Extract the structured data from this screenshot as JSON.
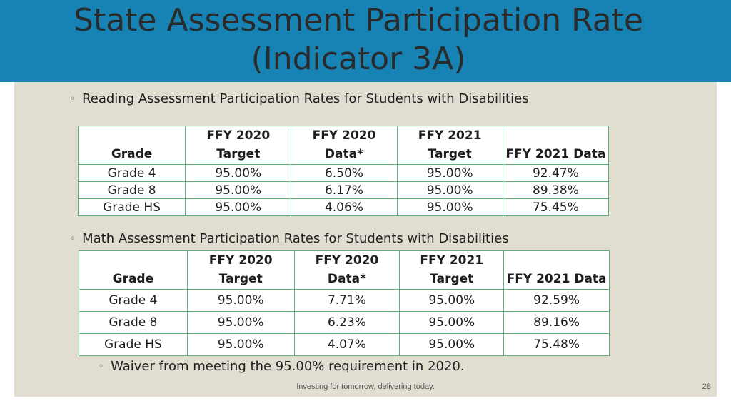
{
  "title": {
    "line1": "State Assessment Participation Rate",
    "line2": "(Indicator 3A)"
  },
  "reading": {
    "heading": "Reading Assessment Participation Rates for Students with Disabilities",
    "columns": [
      {
        "l1": "",
        "l2": "Grade"
      },
      {
        "l1": "FFY 2020",
        "l2": "Target"
      },
      {
        "l1": "FFY 2020",
        "l2": "Data*"
      },
      {
        "l1": "FFY 2021",
        "l2": "Target"
      },
      {
        "l1": "",
        "l2": "FFY 2021 Data"
      }
    ],
    "rows": [
      [
        "Grade 4",
        "95.00%",
        "6.50%",
        "95.00%",
        "92.47%"
      ],
      [
        "Grade 8",
        "95.00%",
        "6.17%",
        "95.00%",
        "89.38%"
      ],
      [
        "Grade HS",
        "95.00%",
        "4.06%",
        "95.00%",
        "75.45%"
      ]
    ]
  },
  "math": {
    "heading": "Math Assessment Participation Rates for Students with Disabilities",
    "columns": [
      {
        "l1": "",
        "l2": "Grade"
      },
      {
        "l1": "FFY 2020",
        "l2": "Target"
      },
      {
        "l1": "FFY 2020",
        "l2": "Data*"
      },
      {
        "l1": "FFY 2021",
        "l2": "Target"
      },
      {
        "l1": "",
        "l2": "FFY 2021 Data"
      }
    ],
    "rows": [
      [
        "Grade 4",
        "95.00%",
        "7.71%",
        "95.00%",
        "92.59%"
      ],
      [
        "Grade 8",
        "95.00%",
        "6.23%",
        "95.00%",
        "89.16%"
      ],
      [
        "Grade HS",
        "95.00%",
        "4.07%",
        "95.00%",
        "75.48%"
      ]
    ]
  },
  "note": "Waiver from meeting the 95.00% requirement in 2020.",
  "footer": "Investing for tomorrow, delivering today.",
  "page_number": "28",
  "bullet_glyph": "◦",
  "colors": {
    "header": "#1683b4",
    "content_bg": "#e2ddd1",
    "table_border": "#5cb07a"
  }
}
